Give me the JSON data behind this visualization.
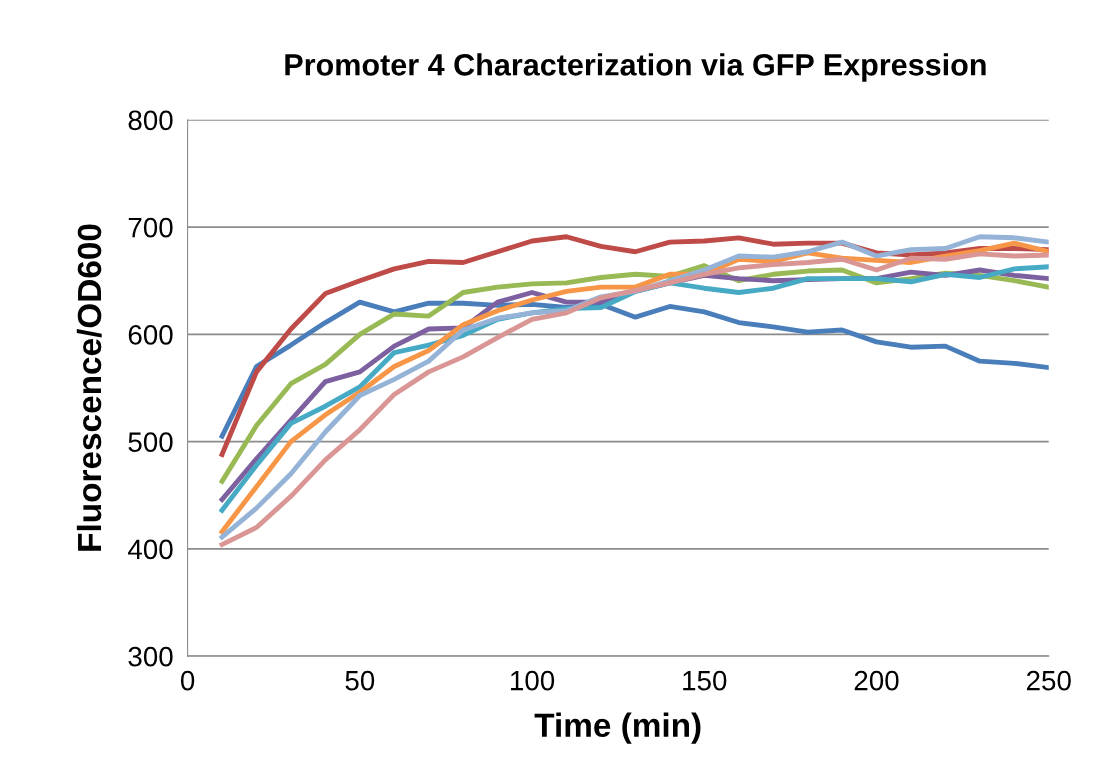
{
  "chart_data": {
    "type": "line",
    "title": "Promoter 4 Characterization via GFP Expression",
    "xlabel": "Time (min)",
    "ylabel": "Fluorescence/OD600",
    "x": [
      10,
      20,
      30,
      40,
      50,
      60,
      70,
      80,
      90,
      100,
      110,
      120,
      130,
      140,
      150,
      160,
      170,
      180,
      190,
      200,
      210,
      220,
      230,
      240,
      250
    ],
    "series": [
      {
        "color": "#4a7ebb",
        "values": [
          505,
          570,
          590,
          611,
          630,
          621,
          629,
          629,
          627,
          628,
          625,
          628,
          616,
          626,
          621,
          611,
          607,
          602,
          604,
          593,
          588,
          589,
          575,
          573,
          569
        ]
      },
      {
        "color": "#be4b48",
        "values": [
          488,
          565,
          605,
          638,
          650,
          661,
          668,
          667,
          677,
          687,
          691,
          682,
          677,
          686,
          687,
          690,
          684,
          685,
          685,
          676,
          674,
          676,
          680,
          680,
          679
        ]
      },
      {
        "color": "#98b954",
        "values": [
          463,
          515,
          554,
          572,
          600,
          619,
          617,
          639,
          644,
          647,
          648,
          653,
          656,
          654,
          664,
          650,
          656,
          659,
          660,
          648,
          652,
          657,
          655,
          650,
          644
        ]
      },
      {
        "color": "#7d60a0",
        "values": [
          446,
          484,
          520,
          556,
          565,
          589,
          605,
          606,
          630,
          639,
          630,
          630,
          640,
          648,
          655,
          652,
          650,
          651,
          652,
          652,
          658,
          655,
          660,
          655,
          652
        ]
      },
      {
        "color": "#46aac5",
        "values": [
          436,
          478,
          517,
          533,
          551,
          583,
          590,
          599,
          614,
          620,
          624,
          625,
          640,
          648,
          643,
          639,
          643,
          652,
          652,
          652,
          649,
          656,
          653,
          661,
          663
        ]
      },
      {
        "color": "#f79646",
        "values": [
          416,
          458,
          500,
          525,
          546,
          570,
          585,
          609,
          622,
          632,
          640,
          644,
          644,
          656,
          656,
          670,
          668,
          676,
          671,
          669,
          667,
          673,
          678,
          685,
          677
        ]
      },
      {
        "color": "#95b3d7",
        "values": [
          411,
          438,
          470,
          509,
          543,
          558,
          575,
          604,
          615,
          620,
          622,
          635,
          640,
          650,
          660,
          673,
          672,
          677,
          686,
          673,
          679,
          680,
          691,
          690,
          686
        ]
      },
      {
        "color": "#d99694",
        "values": [
          404,
          420,
          449,
          483,
          511,
          544,
          565,
          579,
          597,
          614,
          620,
          634,
          641,
          648,
          656,
          662,
          665,
          667,
          670,
          660,
          671,
          670,
          675,
          673,
          674
        ]
      }
    ],
    "xlim": [
      0,
      250
    ],
    "xticks": [
      0,
      50,
      100,
      150,
      200,
      250
    ],
    "ylim": [
      300,
      800
    ],
    "yticks": [
      300,
      400,
      500,
      600,
      700,
      800
    ],
    "grid": "y",
    "marker": "none",
    "line_style": "solid"
  }
}
